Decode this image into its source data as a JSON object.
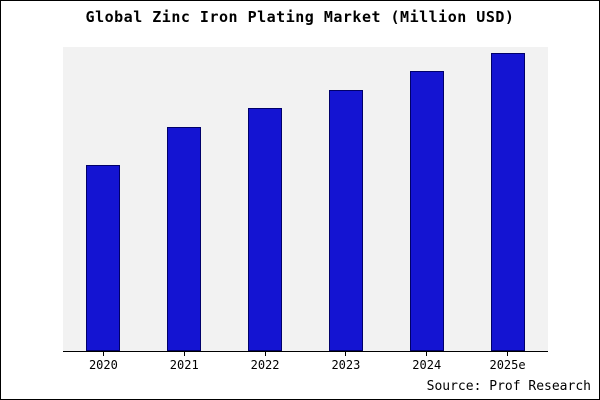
{
  "title": "Global Zinc Iron Plating Market (Million USD)",
  "source": "Source: Prof Research",
  "colors": {
    "bar_fill": "#1414d2",
    "bar_border": "#00006a",
    "plot_background": "#f2f2f2",
    "axis": "#000000"
  },
  "chart_data": {
    "type": "bar",
    "title": "Global Zinc Iron Plating Market (Million USD)",
    "categories": [
      "2020",
      "2021",
      "2022",
      "2023",
      "2024",
      "2025e"
    ],
    "values": [
      62.5,
      75,
      81.5,
      87.5,
      94,
      100
    ],
    "xlabel": "",
    "ylabel": "",
    "ylim": [
      0,
      102
    ],
    "grid": false,
    "legend": false,
    "y_axis_ticks_visible": false,
    "source_note": "Source: Prof Research"
  }
}
